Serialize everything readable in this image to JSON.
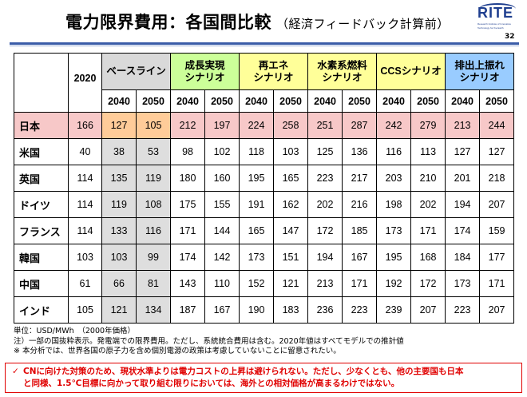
{
  "header": {
    "title": "電力限界費用：各国間比較",
    "subtitle": "（経済フィードバック計算前）",
    "page_number": "32",
    "logo": {
      "word": "RITE",
      "line1": "Research Institute of Innovative",
      "line2": "Technology for the Earth",
      "icon": "rite-logo-icon"
    },
    "colors": {
      "rule": "#3a5ca8",
      "logo": "#1f3f8f"
    }
  },
  "table": {
    "year_2020": "2020",
    "groups": [
      {
        "label": "ベースライン",
        "color": "#d9d9d9"
      },
      {
        "label": "成長実現 シナリオ",
        "color": "#ccff99"
      },
      {
        "label": "再エネ シナリオ",
        "color": "#ffff99"
      },
      {
        "label": "水素系燃料 シナリオ",
        "color": "#ffff99"
      },
      {
        "label": "CCSシナリオ",
        "color": "#ffff99"
      },
      {
        "label": "排出上振れ シナリオ",
        "color": "#99ccff"
      }
    ],
    "years": [
      "2040",
      "2050"
    ],
    "rows": [
      {
        "country": "日本",
        "values": [
          "166",
          "127",
          "105",
          "212",
          "197",
          "224",
          "258",
          "251",
          "287",
          "242",
          "279",
          "213",
          "244"
        ]
      },
      {
        "country": "米国",
        "values": [
          "40",
          "38",
          "53",
          "98",
          "102",
          "118",
          "103",
          "125",
          "136",
          "116",
          "113",
          "127",
          "127"
        ]
      },
      {
        "country": "英国",
        "values": [
          "114",
          "135",
          "119",
          "180",
          "160",
          "195",
          "165",
          "223",
          "217",
          "203",
          "210",
          "201",
          "218"
        ]
      },
      {
        "country": "ドイツ",
        "values": [
          "114",
          "119",
          "108",
          "175",
          "155",
          "191",
          "162",
          "202",
          "216",
          "198",
          "202",
          "194",
          "207"
        ]
      },
      {
        "country": "フランス",
        "values": [
          "114",
          "133",
          "116",
          "171",
          "144",
          "165",
          "147",
          "172",
          "185",
          "173",
          "171",
          "174",
          "159"
        ]
      },
      {
        "country": "韓国",
        "values": [
          "103",
          "103",
          "99",
          "174",
          "142",
          "173",
          "151",
          "194",
          "167",
          "195",
          "168",
          "184",
          "177"
        ]
      },
      {
        "country": "中国",
        "values": [
          "61",
          "66",
          "81",
          "143",
          "110",
          "152",
          "121",
          "213",
          "171",
          "192",
          "172",
          "173",
          "171"
        ]
      },
      {
        "country": "インド",
        "values": [
          "105",
          "121",
          "134",
          "187",
          "167",
          "190",
          "183",
          "236",
          "223",
          "239",
          "207",
          "223",
          "207"
        ]
      }
    ],
    "highlight_colors": {
      "japan_row": "#f7c8c8",
      "japan_baseline": "#ffcc99"
    }
  },
  "notes": [
    "単位：USD/MWh　（2000年価格）",
    "注）一部の国抜粋表示。発電端での限界費用。ただし、系統統合費用は含む。2020年値はすべてモデルでの推計値",
    "※ 本分析では、世界各国の原子力を含め個別電源の政策は考慮していないことに留意されたい。"
  ],
  "callout": {
    "check_icon": "checkmark-icon",
    "check_symbol": "✓",
    "line1": "CNに向けた対策のため、現状水準よりは電力コストの上昇は避けられない。ただし、少なくとも、他の主要国も日本",
    "line2": "と同様、1.5℃目標に向かって取り組む限りにおいては、海外との相対価格が高まるわけではない。",
    "color": "#e00000"
  }
}
